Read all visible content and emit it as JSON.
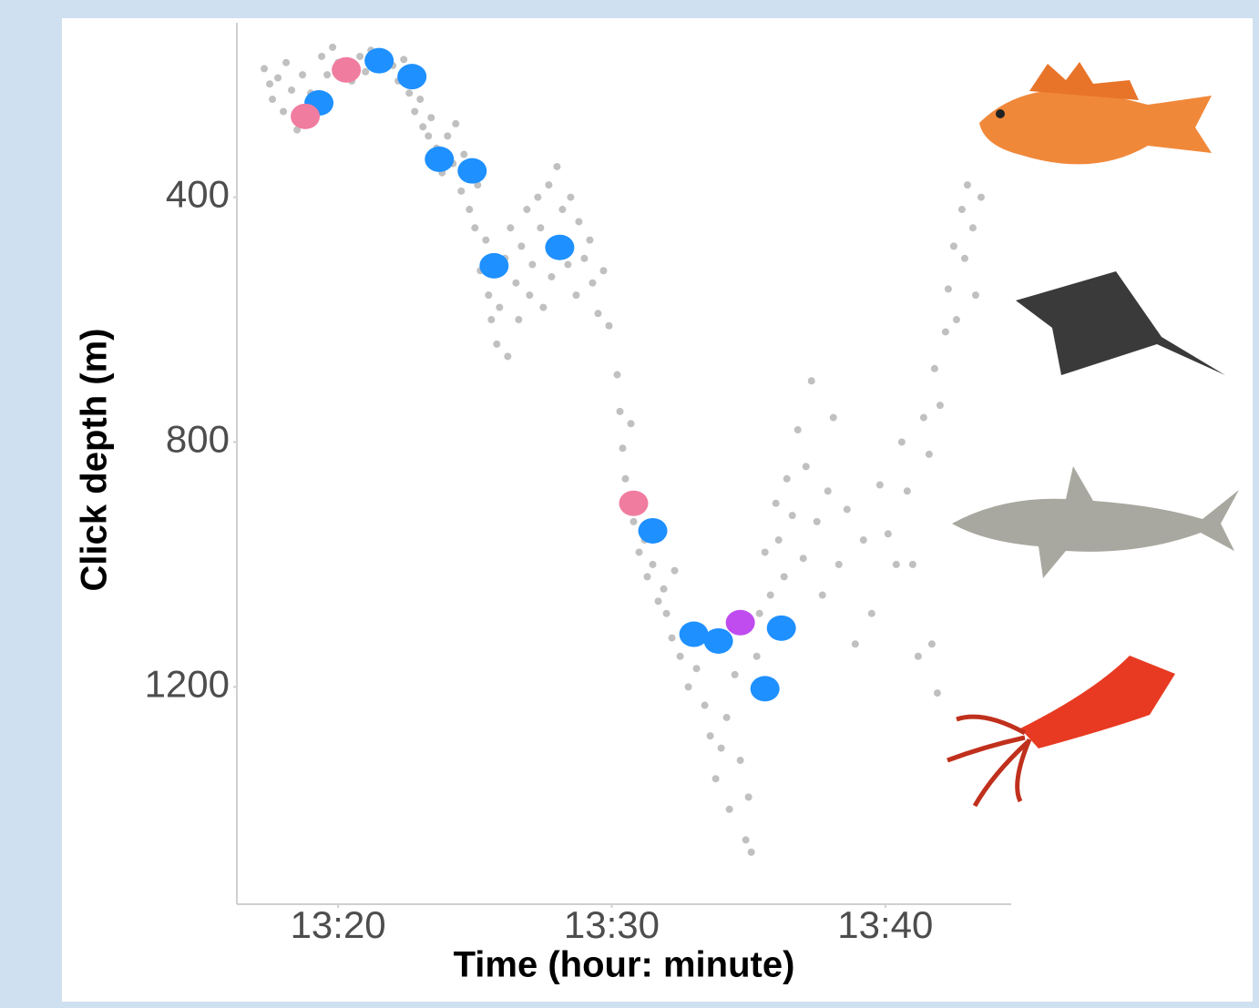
{
  "chart_data": {
    "type": "scatter",
    "x_label": "Time (hour: minute)",
    "y_label": "Click depth (m)",
    "xlim": [
      796.3,
      824.6
    ],
    "xticks": [
      {
        "value": 800,
        "label": "13:20"
      },
      {
        "value": 810,
        "label": "13:30"
      },
      {
        "value": 820,
        "label": "13:40"
      }
    ],
    "ylim": [
      115,
      1555
    ],
    "yticks": [
      400,
      800,
      1200
    ],
    "y_reversed": true,
    "grid": false,
    "series": [
      {
        "color": "#c0c0c0",
        "x": [
          797.3,
          797.5,
          797.6,
          797.8,
          798.0,
          798.1,
          798.3,
          798.5,
          798.7,
          798.9,
          799.0,
          799.4,
          799.6,
          799.8,
          800.0,
          800.5,
          800.8,
          801.0,
          801.2,
          801.8,
          802.0,
          802.2,
          802.4,
          802.6,
          802.8,
          803.0,
          803.1,
          803.3,
          803.4,
          803.6,
          803.8,
          804.0,
          804.2,
          804.3,
          804.5,
          804.6,
          804.8,
          805.0,
          805.1,
          805.2,
          805.4,
          805.5,
          805.6,
          805.8,
          805.9,
          806.1,
          806.2,
          806.3,
          806.5,
          806.6,
          806.7,
          806.9,
          807.0,
          807.1,
          807.3,
          807.4,
          807.5,
          807.7,
          807.8,
          808.0,
          808.2,
          808.4,
          808.5,
          808.7,
          808.8,
          809.0,
          809.2,
          809.3,
          809.5,
          809.7,
          809.9,
          810.2,
          810.3,
          810.4,
          810.5,
          810.7,
          810.8,
          811.0,
          811.2,
          811.3,
          811.5,
          811.7,
          811.9,
          812.0,
          812.2,
          812.3,
          812.5,
          812.8,
          813.1,
          813.4,
          813.6,
          813.8,
          814.0,
          814.2,
          814.3,
          814.5,
          814.7,
          814.9,
          815.0,
          815.1,
          815.3,
          815.4,
          815.6,
          815.8,
          816.0,
          816.1,
          816.3,
          816.4,
          816.6,
          816.8,
          817.0,
          817.1,
          817.3,
          817.5,
          817.7,
          817.9,
          818.1,
          818.3,
          818.6,
          818.9,
          819.2,
          819.5,
          819.8,
          820.1,
          820.4,
          820.6,
          820.8,
          821.0,
          821.2,
          821.4,
          821.6,
          821.8,
          822.0,
          822.2,
          822.3,
          822.5,
          822.6,
          822.8,
          822.9,
          823.0,
          823.2,
          823.3,
          823.5,
          821.9,
          821.7
        ],
        "values": [
          190,
          215,
          240,
          205,
          260,
          180,
          225,
          290,
          200,
          250,
          230,
          170,
          200,
          155,
          180,
          210,
          170,
          195,
          160,
          170,
          185,
          210,
          175,
          230,
          260,
          240,
          285,
          300,
          270,
          320,
          360,
          300,
          345,
          280,
          390,
          330,
          420,
          450,
          380,
          520,
          470,
          560,
          600,
          640,
          580,
          500,
          660,
          450,
          540,
          600,
          480,
          420,
          560,
          510,
          400,
          450,
          580,
          380,
          530,
          350,
          420,
          510,
          400,
          560,
          440,
          500,
          470,
          540,
          590,
          520,
          610,
          690,
          750,
          810,
          860,
          770,
          930,
          980,
          960,
          1020,
          1000,
          1060,
          1040,
          1080,
          1120,
          1010,
          1150,
          1200,
          1170,
          1230,
          1280,
          1350,
          1300,
          1250,
          1400,
          1180,
          1320,
          1450,
          1380,
          1470,
          1150,
          1080,
          980,
          1050,
          900,
          960,
          1020,
          860,
          920,
          780,
          990,
          840,
          700,
          930,
          1050,
          880,
          760,
          1000,
          910,
          1130,
          960,
          1080,
          870,
          950,
          1000,
          800,
          880,
          1000,
          1150,
          760,
          820,
          680,
          740,
          620,
          550,
          480,
          600,
          420,
          500,
          380,
          450,
          560,
          400,
          1210,
          1130
        ]
      },
      {
        "color": "#1e90ff",
        "x": [
          799.3,
          801.5,
          802.7,
          803.7,
          804.9,
          805.7,
          808.1,
          811.5,
          813.0,
          813.9,
          816.2,
          815.6
        ],
        "values": [
          246,
          177,
          203,
          338,
          357,
          512,
          482,
          945,
          1114,
          1125,
          1104,
          1203
        ]
      },
      {
        "color": "#f07ca0",
        "x": [
          798.8,
          800.3,
          810.8
        ],
        "values": [
          268,
          192,
          900
        ]
      },
      {
        "color": "#c04cf0",
        "x": [
          814.7
        ],
        "values": [
          1095
        ]
      }
    ]
  }
}
